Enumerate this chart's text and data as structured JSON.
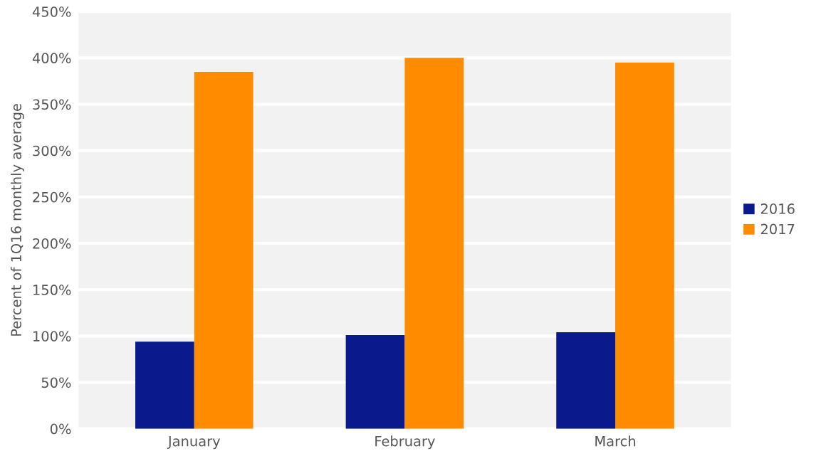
{
  "chart_data": {
    "type": "bar",
    "ylabel": "Percent of 1Q16 monthly average",
    "categories": [
      "January",
      "February",
      "March"
    ],
    "series": [
      {
        "name": "2016",
        "color": "#0a1a8c",
        "values": [
          94,
          101,
          104
        ]
      },
      {
        "name": "2017",
        "color": "#ff8c00",
        "values": [
          385,
          400,
          395
        ]
      }
    ],
    "ylim": [
      0,
      450
    ],
    "yticks": [
      {
        "value": 0,
        "label": "0%"
      },
      {
        "value": 50,
        "label": "50%"
      },
      {
        "value": 100,
        "label": "100%"
      },
      {
        "value": 150,
        "label": "150%"
      },
      {
        "value": 200,
        "label": "200%"
      },
      {
        "value": 250,
        "label": "250%"
      },
      {
        "value": 300,
        "label": "300%"
      },
      {
        "value": 350,
        "label": "350%"
      },
      {
        "value": 400,
        "label": "400%"
      },
      {
        "value": 450,
        "label": "450%"
      }
    ],
    "grid": "y",
    "legend": "right"
  }
}
